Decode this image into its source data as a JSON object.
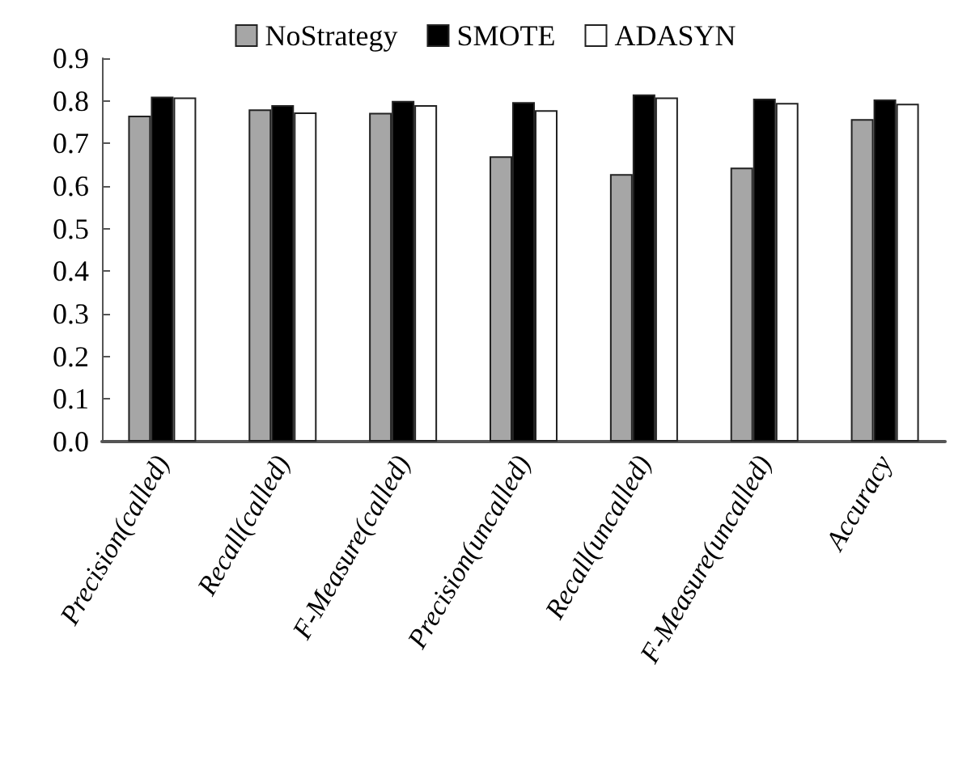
{
  "chart_data": {
    "type": "bar",
    "categories": [
      "Precision(called)",
      "Recall(called)",
      "F-Measure(called)",
      "Precision(uncalled)",
      "Recall(uncalled)",
      "F-Measure(uncalled)",
      "Accuracy"
    ],
    "series": [
      {
        "name": "NoStrategy",
        "color": "#a6a6a6",
        "values": [
          0.765,
          0.78,
          0.772,
          0.67,
          0.628,
          0.643,
          0.757
        ]
      },
      {
        "name": "SMOTE",
        "color": "#000000",
        "values": [
          0.81,
          0.79,
          0.8,
          0.797,
          0.815,
          0.805,
          0.803
        ]
      },
      {
        "name": "ADASYN",
        "color": "#ffffff",
        "values": [
          0.808,
          0.773,
          0.79,
          0.778,
          0.808,
          0.795,
          0.793
        ]
      }
    ],
    "ylim": [
      0,
      0.9
    ],
    "yticks": [
      {
        "value": 0,
        "label": "0.0"
      },
      0.1,
      0.2,
      0.3,
      0.4,
      0.5,
      0.6,
      0.7,
      0.8,
      0.9
    ],
    "grid": false,
    "legend": "top"
  }
}
